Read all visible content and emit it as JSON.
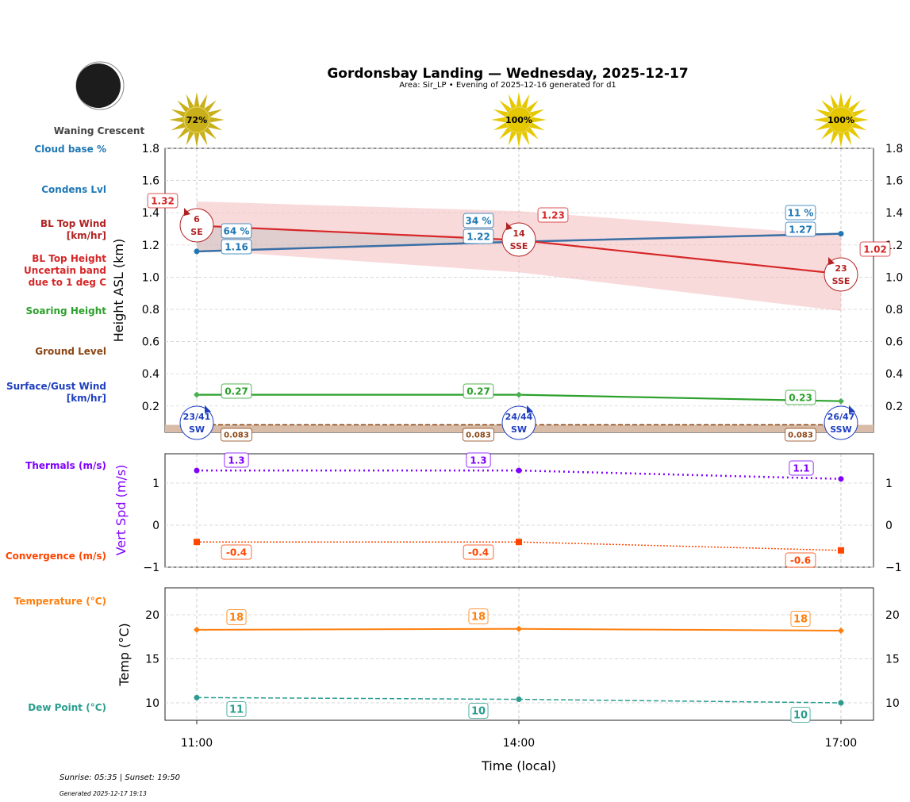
{
  "title": "Gordonsbay Landing — Wednesday, 2025-12-17",
  "subtitle": "Area: Sir_LP • Evening of 2025-12-16 generated for d1",
  "moon_phase": "Waning Crescent",
  "sun_cover": [
    "72%",
    "100%",
    "100%"
  ],
  "footer": {
    "sun_times": "Sunrise: 05:35 | Sunset: 19:50",
    "generated": "Generated 2025-12-17 19:13"
  },
  "side_labels": {
    "cloud_base": "Cloud base %",
    "condens": "Condens Lvl",
    "bl_wind": [
      "BL Top Wind",
      "[km/hr]"
    ],
    "bl_height": [
      "BL Top Height",
      "Uncertain band",
      "due to 1 deg C"
    ],
    "soaring": "Soaring Height",
    "ground": "Ground Level",
    "surface_wind": [
      "Surface/Gust Wind",
      "[km/hr]"
    ],
    "thermals": "Thermals (m/s)",
    "convergence": "Convergence (m/s)",
    "temperature": "Temperature (°C)",
    "dew_point": "Dew Point (°C)"
  },
  "colors": {
    "bl": "#d62728",
    "condens": "#3a6ea5",
    "cloud": "#1f77b4",
    "soaring": "#2ca02c",
    "ground": "#8b4513",
    "surface_wind": "#1f3fbf",
    "thermals": "#8000ff",
    "convergence": "#ff4500",
    "temperature": "#ff7f0e",
    "dew": "#2a9d8f",
    "sun": "#e6c800"
  },
  "chart_data": [
    {
      "type": "line",
      "ylabel": "Height ASL (km)",
      "ylim": [
        0.04,
        1.8
      ],
      "yticks": [
        "0.2",
        "0.4",
        "0.6",
        "0.8",
        "1.0",
        "1.2",
        "1.4",
        "1.6",
        "1.8"
      ],
      "grid": true,
      "x": [
        "11:00",
        "14:00",
        "17:00"
      ],
      "series": [
        {
          "key": "bl_top",
          "values": [
            1.32,
            1.23,
            1.02
          ],
          "labels": [
            "1.32",
            "1.23",
            "1.02"
          ],
          "band_upper": [
            1.47,
            1.41,
            1.26
          ],
          "band_lower": [
            1.17,
            1.03,
            0.79
          ]
        },
        {
          "key": "condens",
          "values": [
            1.16,
            1.22,
            1.27
          ],
          "labels": [
            "1.16",
            "1.22",
            "1.27"
          ]
        },
        {
          "key": "cloud_base_pct",
          "labels": [
            "64 %",
            "34 %",
            "11 %"
          ]
        },
        {
          "key": "soaring",
          "values": [
            0.27,
            0.27,
            0.23
          ],
          "labels": [
            "0.27",
            "0.27",
            "0.23"
          ]
        },
        {
          "key": "ground",
          "values": [
            0.083,
            0.083,
            0.083
          ],
          "labels": [
            "0.083",
            "0.083",
            "0.083"
          ]
        }
      ],
      "bl_wind": [
        {
          "speed": "6",
          "dir": "SE"
        },
        {
          "speed": "14",
          "dir": "SSE"
        },
        {
          "speed": "23",
          "dir": "SSE"
        }
      ],
      "surface_wind": [
        {
          "speed": "23/41",
          "dir": "SW"
        },
        {
          "speed": "24/44",
          "dir": "SW"
        },
        {
          "speed": "26/47",
          "dir": "SSW"
        }
      ]
    },
    {
      "type": "line",
      "ylabel": "Vert Spd (m/s)",
      "ylim": [
        -1,
        1.7
      ],
      "yticks": [
        "−1",
        "0",
        "1"
      ],
      "x": [
        "11:00",
        "14:00",
        "17:00"
      ],
      "series": [
        {
          "key": "thermals",
          "values": [
            1.3,
            1.3,
            1.1
          ],
          "labels": [
            "1.3",
            "1.3",
            "1.1"
          ]
        },
        {
          "key": "convergence",
          "values": [
            -0.4,
            -0.4,
            -0.6
          ],
          "labels": [
            "-0.4",
            "-0.4",
            "-0.6"
          ]
        }
      ]
    },
    {
      "type": "line",
      "ylabel": "Temp (°C)",
      "xlabel": "Time (local)",
      "ylim": [
        8,
        23
      ],
      "yticks": [
        "10",
        "15",
        "20"
      ],
      "x": [
        "11:00",
        "14:00",
        "17:00"
      ],
      "series": [
        {
          "key": "temperature",
          "values": [
            18.3,
            18.4,
            18.2
          ],
          "labels": [
            "18",
            "18",
            "18"
          ]
        },
        {
          "key": "dew_point",
          "values": [
            10.6,
            10.4,
            10.0
          ],
          "labels": [
            "11",
            "10",
            "10"
          ]
        }
      ]
    }
  ]
}
